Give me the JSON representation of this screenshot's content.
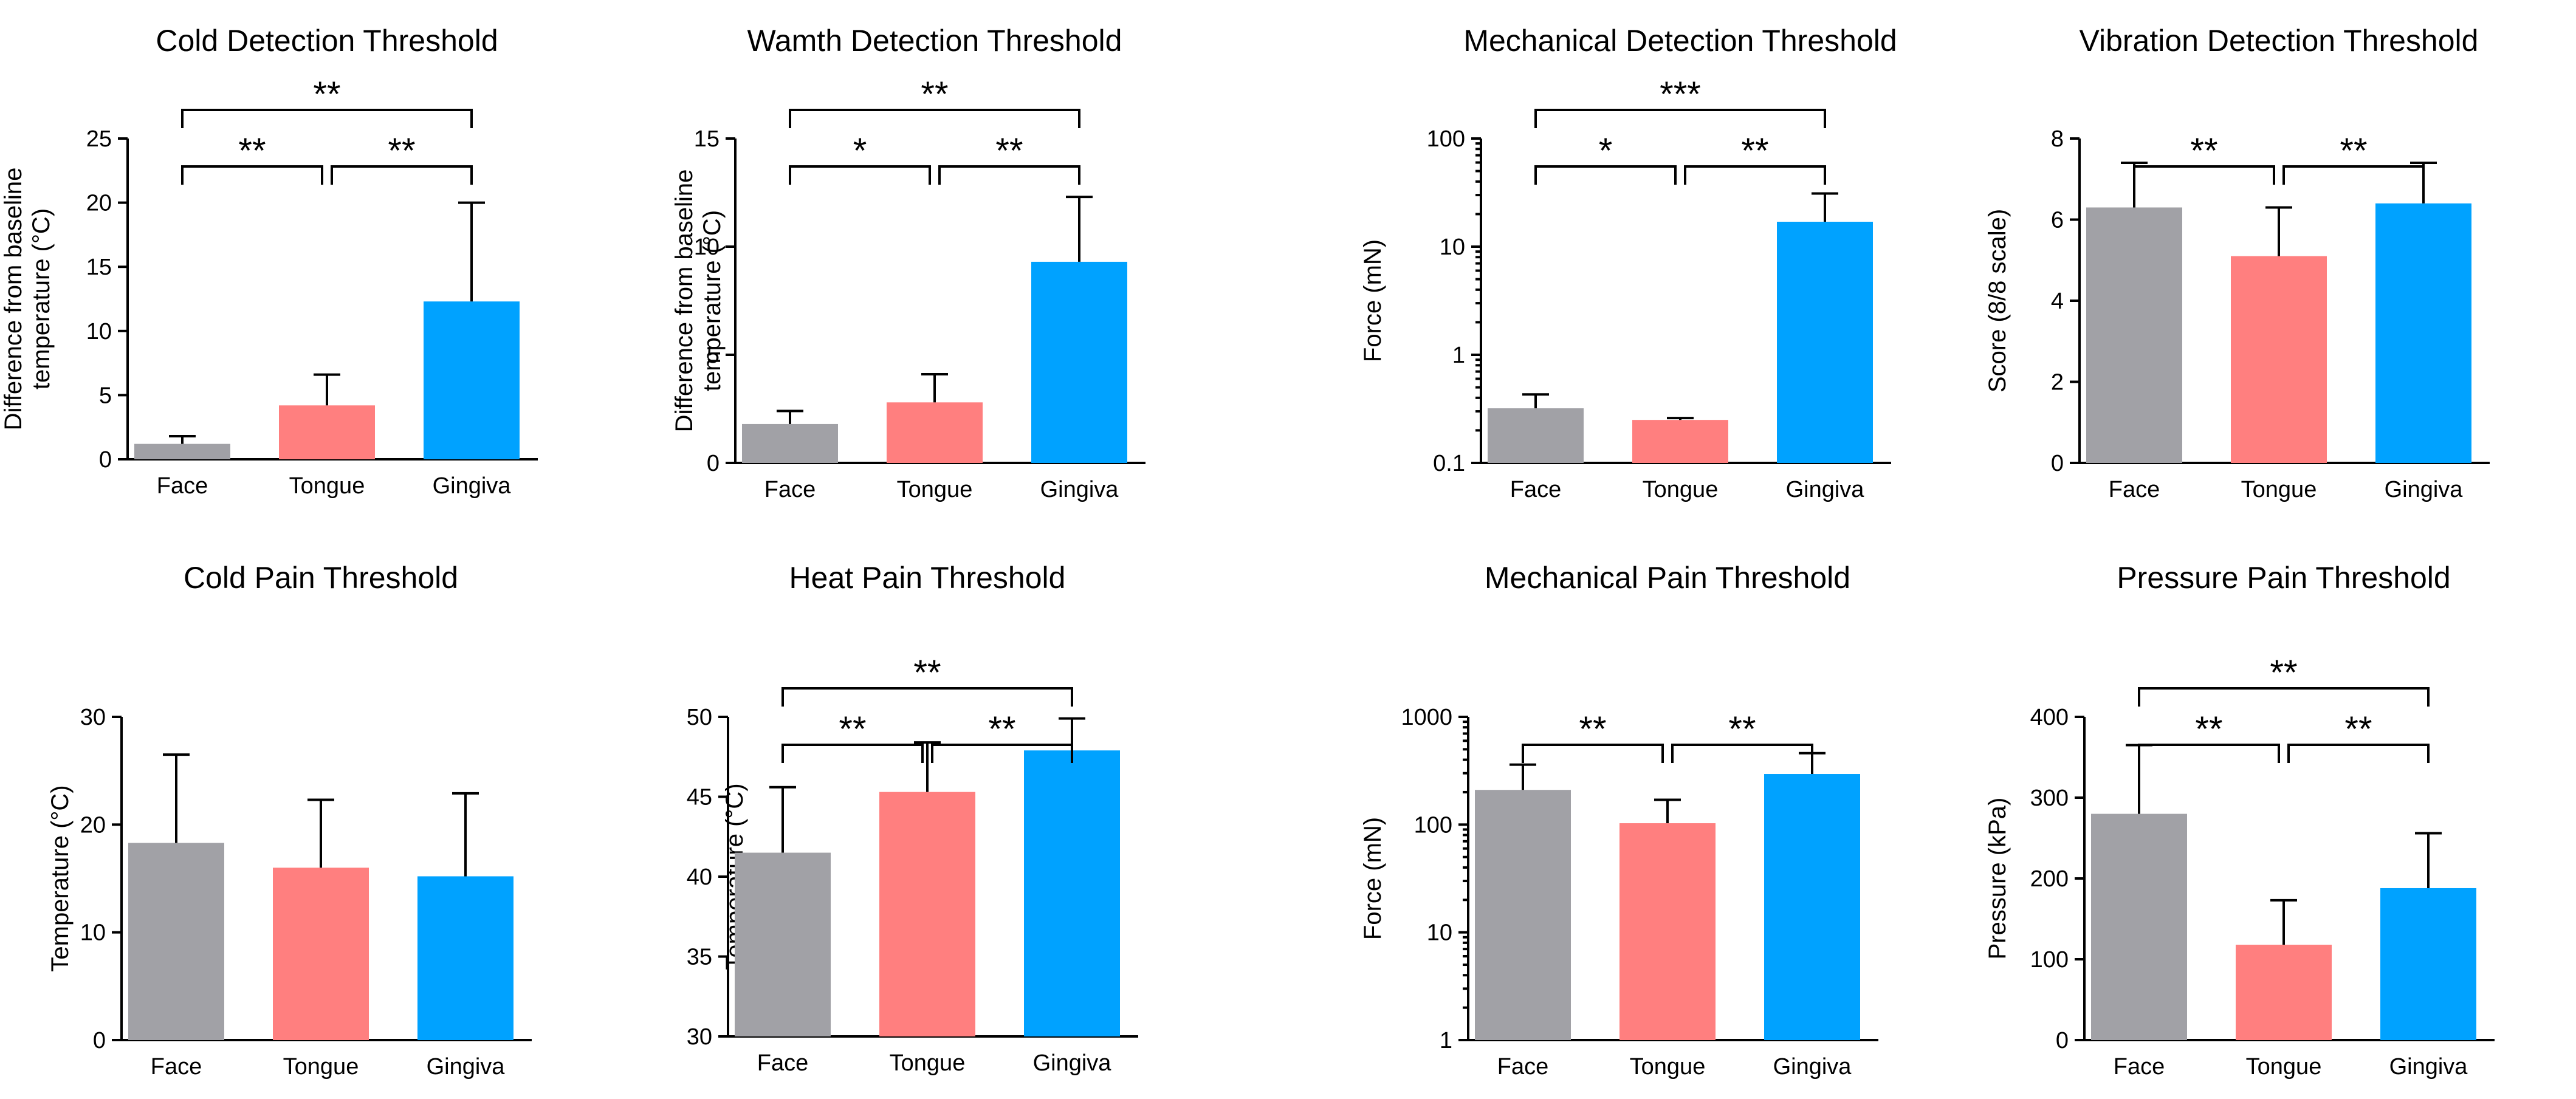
{
  "colors": {
    "face": "#a1a1a6",
    "tongue": "#ff7f7f",
    "gingiva": "#00a2ff"
  },
  "chart_data": [
    {
      "type": "bar",
      "title": "Cold Detection Threshold",
      "categories": [
        "Face",
        "Tongue",
        "Gingiva"
      ],
      "values": [
        1.2,
        4.2,
        12.3
      ],
      "errors": [
        0.6,
        2.4,
        7.7
      ],
      "ylabel": [
        "Difference from baseline",
        "temperature (°C)"
      ],
      "scale": "linear",
      "ylim": [
        0,
        25
      ],
      "yticks": [
        0,
        5,
        10,
        15,
        20,
        25
      ],
      "ytick_labels": [
        "0",
        "5",
        "10",
        "15",
        "20",
        "25"
      ],
      "significance": [
        {
          "from": 0,
          "to": 1,
          "label": "**",
          "level": 0
        },
        {
          "from": 1,
          "to": 2,
          "label": "**",
          "level": 0
        },
        {
          "from": 0,
          "to": 2,
          "label": "**",
          "level": 1
        }
      ]
    },
    {
      "type": "bar",
      "title": "Wamth Detection Threshold",
      "categories": [
        "Face",
        "Tongue",
        "Gingiva"
      ],
      "values": [
        1.8,
        2.8,
        9.3
      ],
      "errors": [
        0.6,
        1.3,
        3.0
      ],
      "ylabel": [
        "Difference from baseline",
        "temperature (°C)"
      ],
      "scale": "linear",
      "ylim": [
        0,
        15
      ],
      "yticks": [
        0,
        5,
        10,
        15
      ],
      "ytick_labels": [
        "0",
        "5",
        "10",
        "15"
      ],
      "significance": [
        {
          "from": 0,
          "to": 1,
          "label": "*",
          "level": 0
        },
        {
          "from": 1,
          "to": 2,
          "label": "**",
          "level": 0
        },
        {
          "from": 0,
          "to": 2,
          "label": "**",
          "level": 1
        }
      ]
    },
    {
      "type": "bar",
      "title": "Mechanical Detection Threshold",
      "categories": [
        "Face",
        "Tongue",
        "Gingiva"
      ],
      "values": [
        0.32,
        0.25,
        17
      ],
      "errors": [
        0.11,
        0.01,
        14
      ],
      "ylabel": [
        "Force (mN)"
      ],
      "scale": "log",
      "ylim": [
        0.1,
        100
      ],
      "yticks": [
        0.1,
        1,
        10,
        100
      ],
      "ytick_labels": [
        "0.1",
        "1",
        "10",
        "100"
      ],
      "significance": [
        {
          "from": 0,
          "to": 1,
          "label": "*",
          "level": 0
        },
        {
          "from": 1,
          "to": 2,
          "label": "**",
          "level": 0
        },
        {
          "from": 0,
          "to": 2,
          "label": "***",
          "level": 1
        }
      ]
    },
    {
      "type": "bar",
      "title": "Vibration Detection Threshold",
      "categories": [
        "Face",
        "Tongue",
        "Gingiva"
      ],
      "values": [
        6.3,
        5.1,
        6.4
      ],
      "errors": [
        1.1,
        1.2,
        1.0
      ],
      "ylabel": [
        "Score (8/8 scale)"
      ],
      "scale": "linear",
      "ylim": [
        0,
        8
      ],
      "yticks": [
        0,
        2,
        4,
        6,
        8
      ],
      "ytick_labels": [
        "0",
        "2",
        "4",
        "6",
        "8"
      ],
      "significance": [
        {
          "from": 0,
          "to": 1,
          "label": "**",
          "level": 0
        },
        {
          "from": 1,
          "to": 2,
          "label": "**",
          "level": 0
        }
      ]
    },
    {
      "type": "bar",
      "title": "Cold Pain Threshold",
      "categories": [
        "Face",
        "Tongue",
        "Gingiva"
      ],
      "values": [
        18.3,
        16.0,
        15.2
      ],
      "errors": [
        8.2,
        6.3,
        7.7
      ],
      "ylabel": [
        "Temperature (°C)"
      ],
      "scale": "linear",
      "ylim": [
        0,
        30
      ],
      "yticks": [
        0,
        10,
        20,
        30
      ],
      "ytick_labels": [
        "0",
        "10",
        "20",
        "30"
      ],
      "significance": []
    },
    {
      "type": "bar",
      "title": "Heat Pain Threshold",
      "categories": [
        "Face",
        "Tongue",
        "Gingiva"
      ],
      "values": [
        41.5,
        45.3,
        47.9
      ],
      "errors": [
        4.1,
        3.1,
        2.0
      ],
      "ylabel": [
        "Temperature (°C)"
      ],
      "scale": "linear",
      "ylim": [
        30,
        50
      ],
      "yticks": [
        30,
        35,
        40,
        45,
        50
      ],
      "ytick_labels": [
        "30",
        "35",
        "40",
        "45",
        "50"
      ],
      "significance": [
        {
          "from": 0,
          "to": 1,
          "label": "**",
          "level": 0
        },
        {
          "from": 1,
          "to": 2,
          "label": "**",
          "level": 0
        },
        {
          "from": 0,
          "to": 2,
          "label": "**",
          "level": 1
        }
      ]
    },
    {
      "type": "bar",
      "title": "Mechanical Pain Threshold",
      "categories": [
        "Face",
        "Tongue",
        "Gingiva"
      ],
      "values": [
        210,
        103,
        295
      ],
      "errors": [
        150,
        67,
        165
      ],
      "ylabel": [
        "Force (mN)"
      ],
      "scale": "log",
      "ylim": [
        1,
        1000
      ],
      "yticks": [
        1,
        10,
        100,
        1000
      ],
      "ytick_labels": [
        "1",
        "10",
        "100",
        "1000"
      ],
      "significance": [
        {
          "from": 0,
          "to": 1,
          "label": "**",
          "level": 0
        },
        {
          "from": 1,
          "to": 2,
          "label": "**",
          "level": 0
        }
      ]
    },
    {
      "type": "bar",
      "title": "Pressure Pain Threshold",
      "categories": [
        "Face",
        "Tongue",
        "Gingiva"
      ],
      "values": [
        280,
        118,
        188
      ],
      "errors": [
        85,
        55,
        68
      ],
      "ylabel": [
        "Pressure (kPa)"
      ],
      "scale": "linear",
      "ylim": [
        0,
        400
      ],
      "yticks": [
        0,
        100,
        200,
        300,
        400
      ],
      "ytick_labels": [
        "0",
        "100",
        "200",
        "300",
        "400"
      ],
      "significance": [
        {
          "from": 0,
          "to": 1,
          "label": "**",
          "level": 0
        },
        {
          "from": 1,
          "to": 2,
          "label": "**",
          "level": 0
        },
        {
          "from": 0,
          "to": 2,
          "label": "**",
          "level": 1
        }
      ]
    }
  ]
}
